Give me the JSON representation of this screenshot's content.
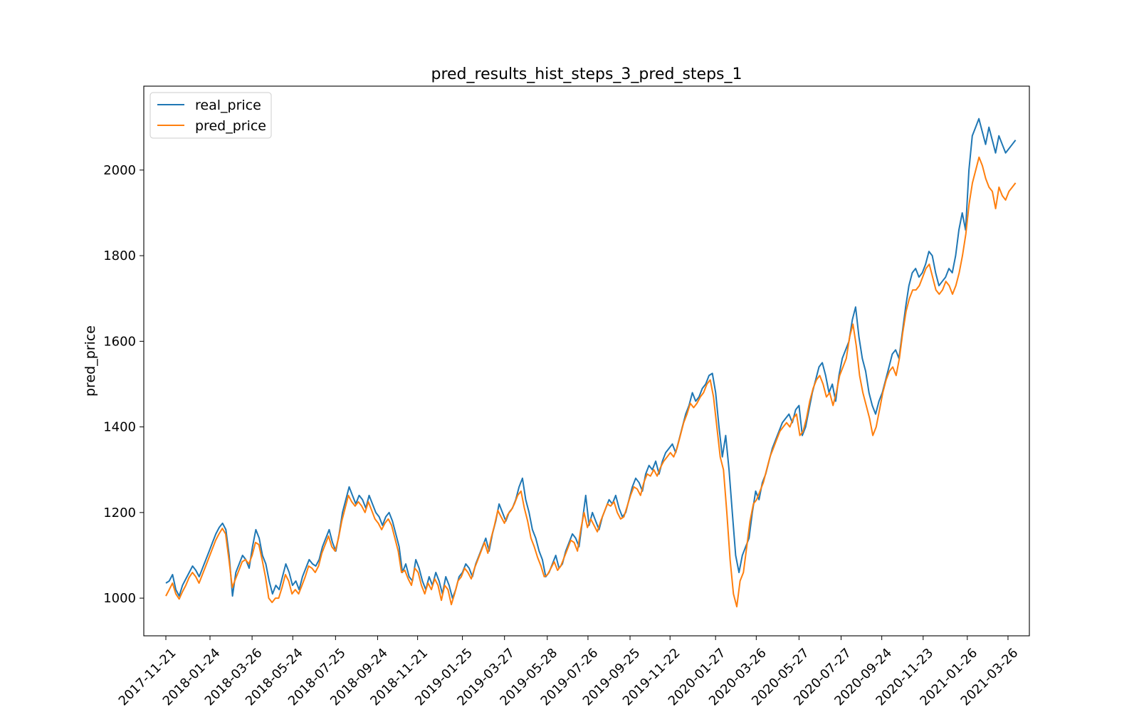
{
  "chart_data": {
    "type": "line",
    "title": "pred_results_hist_steps_3_pred_steps_1",
    "xlabel": "",
    "ylabel": "pred_price",
    "x_type": "date",
    "x_start": "2017-11-21",
    "x_end": "2021-04-06",
    "xlim": [
      "2017-10-20",
      "2021-04-26"
    ],
    "ylim": [
      912,
      2196
    ],
    "grid": false,
    "legend_position": "top-left",
    "x_ticks": [
      "2017-11-21",
      "2018-01-24",
      "2018-03-26",
      "2018-05-24",
      "2018-07-25",
      "2018-09-24",
      "2018-11-21",
      "2019-01-25",
      "2019-03-27",
      "2019-05-28",
      "2019-07-26",
      "2019-09-25",
      "2019-11-22",
      "2020-01-27",
      "2020-03-26",
      "2020-05-27",
      "2020-07-27",
      "2020-09-24",
      "2020-11-23",
      "2021-01-26",
      "2021-03-26"
    ],
    "y_ticks": [
      1000,
      1200,
      1400,
      1600,
      1800,
      2000
    ],
    "series": [
      {
        "name": "real_price",
        "color": "#1f77b4",
        "values": [
          1035,
          1040,
          1055,
          1020,
          1005,
          1030,
          1045,
          1060,
          1075,
          1065,
          1050,
          1070,
          1090,
          1110,
          1130,
          1150,
          1165,
          1175,
          1160,
          1100,
          1005,
          1060,
          1080,
          1100,
          1090,
          1070,
          1120,
          1160,
          1140,
          1100,
          1080,
          1040,
          1010,
          1030,
          1020,
          1050,
          1080,
          1060,
          1030,
          1040,
          1020,
          1050,
          1070,
          1090,
          1080,
          1075,
          1090,
          1120,
          1140,
          1160,
          1130,
          1110,
          1150,
          1200,
          1230,
          1260,
          1240,
          1220,
          1240,
          1230,
          1210,
          1240,
          1220,
          1200,
          1190,
          1170,
          1190,
          1200,
          1180,
          1150,
          1120,
          1060,
          1080,
          1050,
          1040,
          1090,
          1070,
          1040,
          1020,
          1050,
          1030,
          1060,
          1040,
          1010,
          1050,
          1030,
          1000,
          1020,
          1050,
          1060,
          1080,
          1070,
          1050,
          1080,
          1100,
          1120,
          1140,
          1110,
          1150,
          1180,
          1220,
          1200,
          1180,
          1200,
          1210,
          1230,
          1260,
          1280,
          1230,
          1200,
          1160,
          1140,
          1110,
          1090,
          1050,
          1060,
          1080,
          1100,
          1070,
          1080,
          1110,
          1130,
          1150,
          1140,
          1120,
          1180,
          1240,
          1170,
          1200,
          1180,
          1160,
          1190,
          1210,
          1230,
          1220,
          1240,
          1210,
          1190,
          1200,
          1230,
          1260,
          1280,
          1270,
          1250,
          1290,
          1310,
          1300,
          1320,
          1290,
          1320,
          1340,
          1350,
          1360,
          1340,
          1370,
          1400,
          1430,
          1450,
          1480,
          1460,
          1470,
          1490,
          1500,
          1520,
          1525,
          1480,
          1400,
          1330,
          1380,
          1300,
          1200,
          1100,
          1060,
          1100,
          1120,
          1140,
          1200,
          1250,
          1230,
          1270,
          1290,
          1320,
          1350,
          1370,
          1390,
          1410,
          1420,
          1430,
          1410,
          1440,
          1450,
          1380,
          1400,
          1440,
          1480,
          1510,
          1540,
          1550,
          1520,
          1480,
          1500,
          1460,
          1520,
          1560,
          1580,
          1600,
          1650,
          1680,
          1610,
          1560,
          1530,
          1480,
          1450,
          1430,
          1460,
          1480,
          1510,
          1540,
          1570,
          1580,
          1560,
          1620,
          1680,
          1730,
          1760,
          1770,
          1750,
          1760,
          1780,
          1810,
          1800,
          1760,
          1730,
          1740,
          1750,
          1770,
          1760,
          1800,
          1860,
          1900,
          1860,
          2000,
          2080,
          2100,
          2120,
          2090,
          2060,
          2100,
          2070,
          2040,
          2080,
          2060,
          2040,
          2050,
          2060,
          2070
        ]
      },
      {
        "name": "pred_price",
        "color": "#ff7f0e",
        "values": [
          1005,
          1020,
          1035,
          1010,
          998,
          1015,
          1030,
          1048,
          1060,
          1050,
          1035,
          1055,
          1075,
          1095,
          1115,
          1135,
          1150,
          1163,
          1150,
          1090,
          1025,
          1045,
          1065,
          1085,
          1090,
          1080,
          1100,
          1130,
          1125,
          1090,
          1050,
          1000,
          990,
          1000,
          1000,
          1025,
          1055,
          1040,
          1010,
          1020,
          1010,
          1030,
          1050,
          1075,
          1070,
          1060,
          1075,
          1105,
          1125,
          1145,
          1120,
          1110,
          1140,
          1180,
          1210,
          1240,
          1225,
          1215,
          1225,
          1215,
          1200,
          1225,
          1205,
          1185,
          1175,
          1160,
          1175,
          1185,
          1170,
          1140,
          1110,
          1060,
          1065,
          1045,
          1030,
          1070,
          1060,
          1030,
          1010,
          1035,
          1020,
          1045,
          1030,
          995,
          1030,
          1020,
          985,
          1010,
          1040,
          1050,
          1070,
          1060,
          1045,
          1070,
          1090,
          1110,
          1130,
          1105,
          1140,
          1170,
          1205,
          1190,
          1175,
          1195,
          1205,
          1220,
          1240,
          1250,
          1210,
          1180,
          1140,
          1120,
          1095,
          1075,
          1050,
          1055,
          1070,
          1085,
          1065,
          1075,
          1095,
          1115,
          1135,
          1130,
          1110,
          1160,
          1200,
          1165,
          1185,
          1170,
          1155,
          1180,
          1200,
          1220,
          1215,
          1225,
          1200,
          1185,
          1190,
          1215,
          1240,
          1260,
          1255,
          1240,
          1270,
          1290,
          1285,
          1300,
          1285,
          1305,
          1320,
          1330,
          1340,
          1330,
          1350,
          1380,
          1410,
          1430,
          1455,
          1445,
          1455,
          1470,
          1480,
          1500,
          1510,
          1470,
          1400,
          1330,
          1300,
          1200,
          1090,
          1010,
          980,
          1040,
          1060,
          1120,
          1180,
          1220,
          1230,
          1250,
          1270,
          1300,
          1330,
          1350,
          1370,
          1390,
          1400,
          1410,
          1400,
          1420,
          1430,
          1380,
          1390,
          1420,
          1460,
          1490,
          1510,
          1520,
          1500,
          1470,
          1480,
          1450,
          1480,
          1520,
          1540,
          1560,
          1610,
          1640,
          1590,
          1520,
          1480,
          1450,
          1420,
          1380,
          1400,
          1440,
          1480,
          1510,
          1530,
          1540,
          1520,
          1560,
          1620,
          1670,
          1700,
          1720,
          1720,
          1730,
          1750,
          1770,
          1780,
          1750,
          1720,
          1710,
          1720,
          1740,
          1730,
          1710,
          1730,
          1760,
          1800,
          1850,
          1920,
          1970,
          2000,
          2030,
          2010,
          1980,
          1960,
          1950,
          1910,
          1960,
          1940,
          1930,
          1950,
          1960,
          1970
        ]
      }
    ]
  }
}
